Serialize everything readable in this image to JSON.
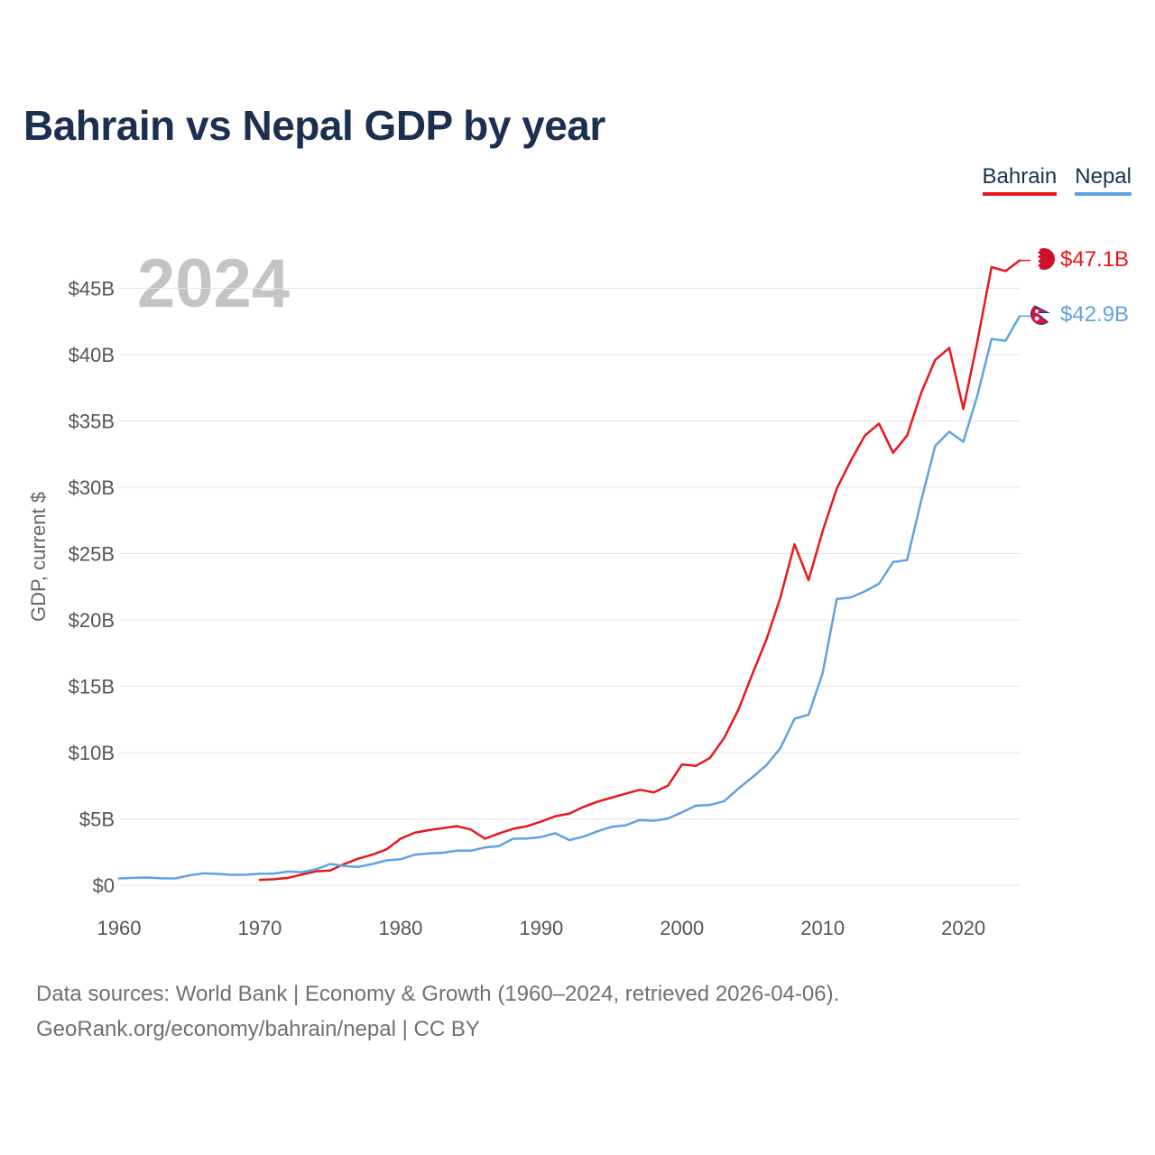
{
  "title": "Bahrain vs Nepal GDP by year",
  "legend": {
    "bahrain": "Bahrain",
    "nepal": "Nepal"
  },
  "footer": {
    "line1": "Data sources: World Bank | Economy & Growth (1960–2024, retrieved 2026-04-06).",
    "line2": "GeoRank.org/economy/bahrain/nepal | CC BY"
  },
  "chart_data": {
    "type": "line",
    "title": "Bahrain vs Nepal GDP by year",
    "xlabel": "",
    "ylabel": "GDP, current $",
    "year_label": "2024",
    "xlim": [
      1960,
      2024
    ],
    "ylim": [
      -2,
      50
    ],
    "grid": true,
    "x_ticks": [
      {
        "value": 1960,
        "label": "1960"
      },
      {
        "value": 1970,
        "label": "1970"
      },
      {
        "value": 1980,
        "label": "1980"
      },
      {
        "value": 1990,
        "label": "1990"
      },
      {
        "value": 2000,
        "label": "2000"
      },
      {
        "value": 2010,
        "label": "2010"
      },
      {
        "value": 2020,
        "label": "2020"
      }
    ],
    "y_ticks": [
      {
        "value": 0,
        "label": "$0"
      },
      {
        "value": 5,
        "label": "$5B"
      },
      {
        "value": 10,
        "label": "$10B"
      },
      {
        "value": 15,
        "label": "$15B"
      },
      {
        "value": 20,
        "label": "$20B"
      },
      {
        "value": 25,
        "label": "$25B"
      },
      {
        "value": 30,
        "label": "$30B"
      },
      {
        "value": 35,
        "label": "$35B"
      },
      {
        "value": 40,
        "label": "$40B"
      },
      {
        "value": 45,
        "label": "$45B"
      }
    ],
    "series": [
      {
        "name": "Bahrain",
        "key": "bahrain",
        "color": "#e8171c",
        "end_label": "$47.1B",
        "flag_icon": "bahrain-flag-icon",
        "x": [
          1970,
          1971,
          1972,
          1973,
          1974,
          1975,
          1976,
          1977,
          1978,
          1979,
          1980,
          1981,
          1982,
          1983,
          1984,
          1985,
          1986,
          1987,
          1988,
          1989,
          1990,
          1991,
          1992,
          1993,
          1994,
          1995,
          1996,
          1997,
          1998,
          1999,
          2000,
          2001,
          2002,
          2003,
          2004,
          2005,
          2006,
          2007,
          2008,
          2009,
          2010,
          2011,
          2012,
          2013,
          2014,
          2015,
          2016,
          2017,
          2018,
          2019,
          2020,
          2021,
          2022,
          2023,
          2024
        ],
        "values": [
          0.4,
          0.45,
          0.55,
          0.8,
          1.05,
          1.1,
          1.6,
          2.0,
          2.3,
          2.7,
          3.5,
          3.95,
          4.15,
          4.3,
          4.45,
          4.2,
          3.5,
          3.9,
          4.25,
          4.45,
          4.8,
          5.2,
          5.4,
          5.9,
          6.3,
          6.6,
          6.9,
          7.2,
          7.0,
          7.5,
          9.1,
          9.0,
          9.6,
          11.1,
          13.2,
          15.9,
          18.5,
          21.7,
          25.7,
          23.0,
          26.7,
          29.9,
          32.0,
          33.9,
          34.8,
          32.6,
          33.9,
          37.1,
          39.6,
          40.5,
          35.9,
          41.0,
          46.6,
          46.3,
          47.1
        ]
      },
      {
        "name": "Nepal",
        "key": "nepal",
        "color": "#5fa2e2",
        "end_label": "$42.9B",
        "flag_icon": "nepal-flag-icon",
        "x": [
          1960,
          1961,
          1962,
          1963,
          1964,
          1965,
          1966,
          1967,
          1968,
          1969,
          1970,
          1971,
          1972,
          1973,
          1974,
          1975,
          1976,
          1977,
          1978,
          1979,
          1980,
          1981,
          1982,
          1983,
          1984,
          1985,
          1986,
          1987,
          1988,
          1989,
          1990,
          1991,
          1992,
          1993,
          1994,
          1995,
          1996,
          1997,
          1998,
          1999,
          2000,
          2001,
          2002,
          2003,
          2004,
          2005,
          2006,
          2007,
          2008,
          2009,
          2010,
          2011,
          2012,
          2013,
          2014,
          2015,
          2016,
          2017,
          2018,
          2019,
          2020,
          2021,
          2022,
          2023,
          2024
        ],
        "values": [
          0.51,
          0.55,
          0.58,
          0.52,
          0.51,
          0.74,
          0.9,
          0.85,
          0.78,
          0.79,
          0.87,
          0.88,
          1.03,
          0.98,
          1.2,
          1.6,
          1.45,
          1.38,
          1.6,
          1.87,
          1.95,
          2.3,
          2.4,
          2.45,
          2.6,
          2.6,
          2.85,
          2.95,
          3.5,
          3.52,
          3.63,
          3.92,
          3.4,
          3.66,
          4.07,
          4.4,
          4.52,
          4.92,
          4.86,
          5.03,
          5.49,
          6.0,
          6.05,
          6.33,
          7.27,
          8.13,
          9.04,
          10.33,
          12.55,
          12.85,
          16.0,
          21.57,
          21.7,
          22.15,
          22.73,
          24.36,
          24.52,
          28.97,
          33.11,
          34.19,
          33.43,
          36.93,
          41.18,
          41.05,
          42.9
        ]
      }
    ]
  }
}
